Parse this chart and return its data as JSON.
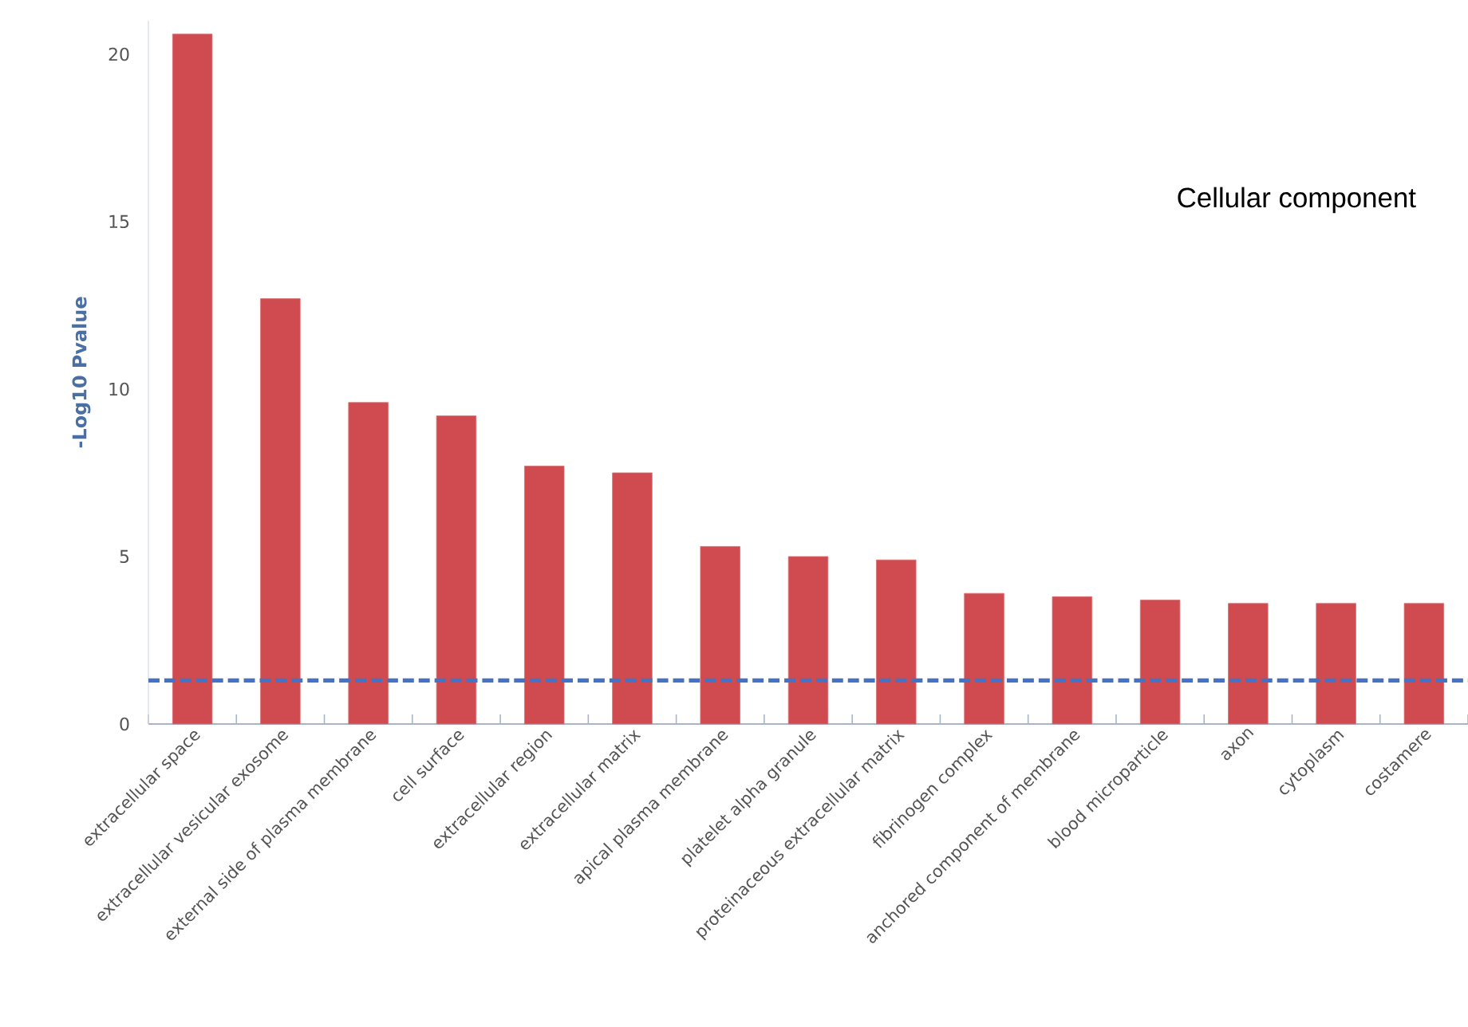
{
  "chart_data": {
    "type": "bar",
    "title": "Cellular component",
    "ylabel": "-Log10 Pvalue",
    "categories": [
      "extracellular space",
      "extracellular vesicular exosome",
      "external side of plasma membrane",
      "cell surface",
      "extracellular region",
      "extracellular matrix",
      "apical plasma membrane",
      "platelet alpha granule",
      "proteinaceous extracellular matrix",
      "fibrinogen complex",
      "anchored component of membrane",
      "blood microparticle",
      "axon",
      "cytoplasm",
      "costamere"
    ],
    "values": [
      20.6,
      12.7,
      9.6,
      9.2,
      7.7,
      7.5,
      5.3,
      5.0,
      4.9,
      3.9,
      3.8,
      3.7,
      3.6,
      3.6,
      3.6
    ],
    "color": "#d04b4f",
    "ylim": [
      0,
      21
    ],
    "yticks": [
      0,
      5,
      10,
      15,
      20
    ],
    "grid": false,
    "ref_lines": [
      {
        "axis": "y",
        "value": 1.3,
        "color": "#4472c4",
        "line_style": "dashed"
      }
    ]
  }
}
